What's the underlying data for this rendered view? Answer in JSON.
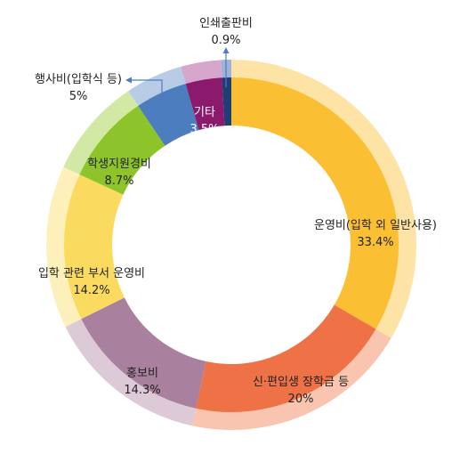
{
  "chart_data": {
    "type": "pie",
    "style": "donut",
    "slices": [
      {
        "name": "운영비(입학 외 일반사용)",
        "value": 33.4,
        "value_label": "33.4%",
        "color": "#FBBF33",
        "light": "#FDE3A6"
      },
      {
        "name": "신·편입생 장학금 등",
        "value": 20,
        "value_label": "20%",
        "color": "#EF7247",
        "light": "#F9C5B0"
      },
      {
        "name": "홍보비",
        "value": 14.3,
        "value_label": "14.3%",
        "color": "#A9819F",
        "light": "#DCCBD7"
      },
      {
        "name": "입학 관련 부서 운영비",
        "value": 14.2,
        "value_label": "14.2%",
        "color": "#FBDB5F",
        "light": "#FEF0BB"
      },
      {
        "name": "학생지원경비",
        "value": 8.7,
        "value_label": "8.7%",
        "color": "#8DC42A",
        "light": "#D2E9A6"
      },
      {
        "name": "행사비(입학식 등)",
        "value": 5,
        "value_label": "5%",
        "color": "#4C7DBF",
        "light": "#B8CCE6"
      },
      {
        "name": "기타",
        "value": 3.5,
        "value_label": "3.5%",
        "color": "#8B1A6D",
        "light": "#D6A6CC"
      },
      {
        "name": "인쇄출판비",
        "value": 0.9,
        "value_label": "0.9%",
        "color": "#1F3E73",
        "light": "#9FB3D6"
      }
    ]
  }
}
